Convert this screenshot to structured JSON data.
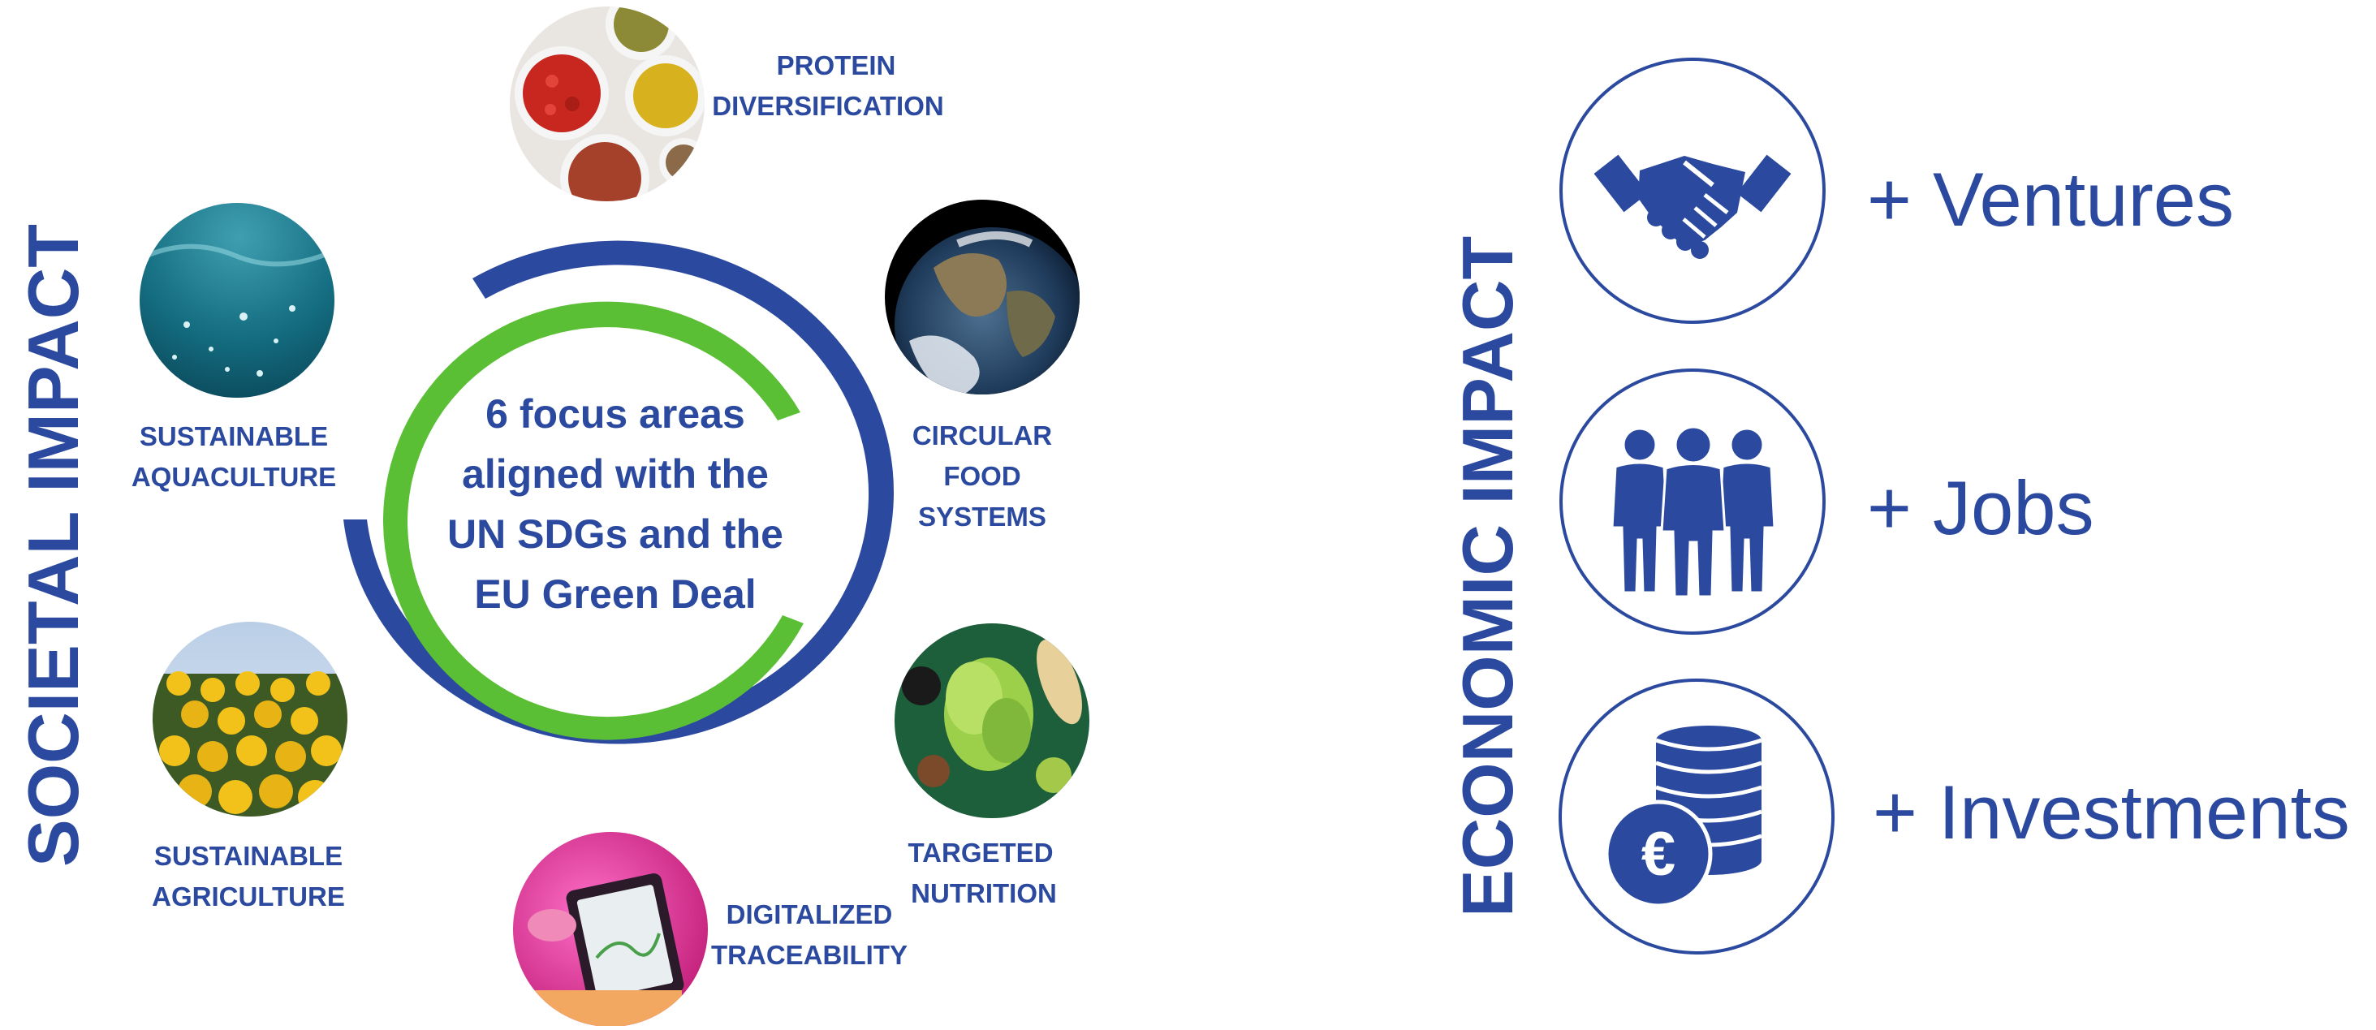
{
  "colors": {
    "primary_blue": "#2b4a9f",
    "green": "#5bbf35",
    "white": "#ffffff"
  },
  "societal_impact": {
    "title": "SOCIETAL IMPACT",
    "center_text": [
      "6 focus areas",
      "aligned with the",
      "UN SDGs and the",
      "EU Green Deal"
    ],
    "focus_areas": [
      {
        "label_lines": [
          "PROTEIN",
          "DIVERSIFICATION"
        ],
        "image": "spices-seeds-bowls"
      },
      {
        "label_lines": [
          "CIRCULAR",
          "FOOD",
          "SYSTEMS"
        ],
        "image": "earth-globe"
      },
      {
        "label_lines": [
          "TARGETED",
          "NUTRITION"
        ],
        "image": "green-vegetables"
      },
      {
        "label_lines": [
          "DIGITALIZED",
          "TRACEABILITY"
        ],
        "image": "tablet-pink-light"
      },
      {
        "label_lines": [
          "SUSTAINABLE",
          "AGRICULTURE"
        ],
        "image": "sunflower-field"
      },
      {
        "label_lines": [
          "SUSTAINABLE",
          "AQUACULTURE"
        ],
        "image": "underwater-sea"
      }
    ]
  },
  "economic_impact": {
    "title": "ECONOMIC IMPACT",
    "items": [
      {
        "label": "+ Ventures",
        "icon": "handshake-icon"
      },
      {
        "label": "+ Jobs",
        "icon": "people-icon"
      },
      {
        "label": "+ Investments",
        "icon": "coins-euro-icon"
      }
    ]
  }
}
